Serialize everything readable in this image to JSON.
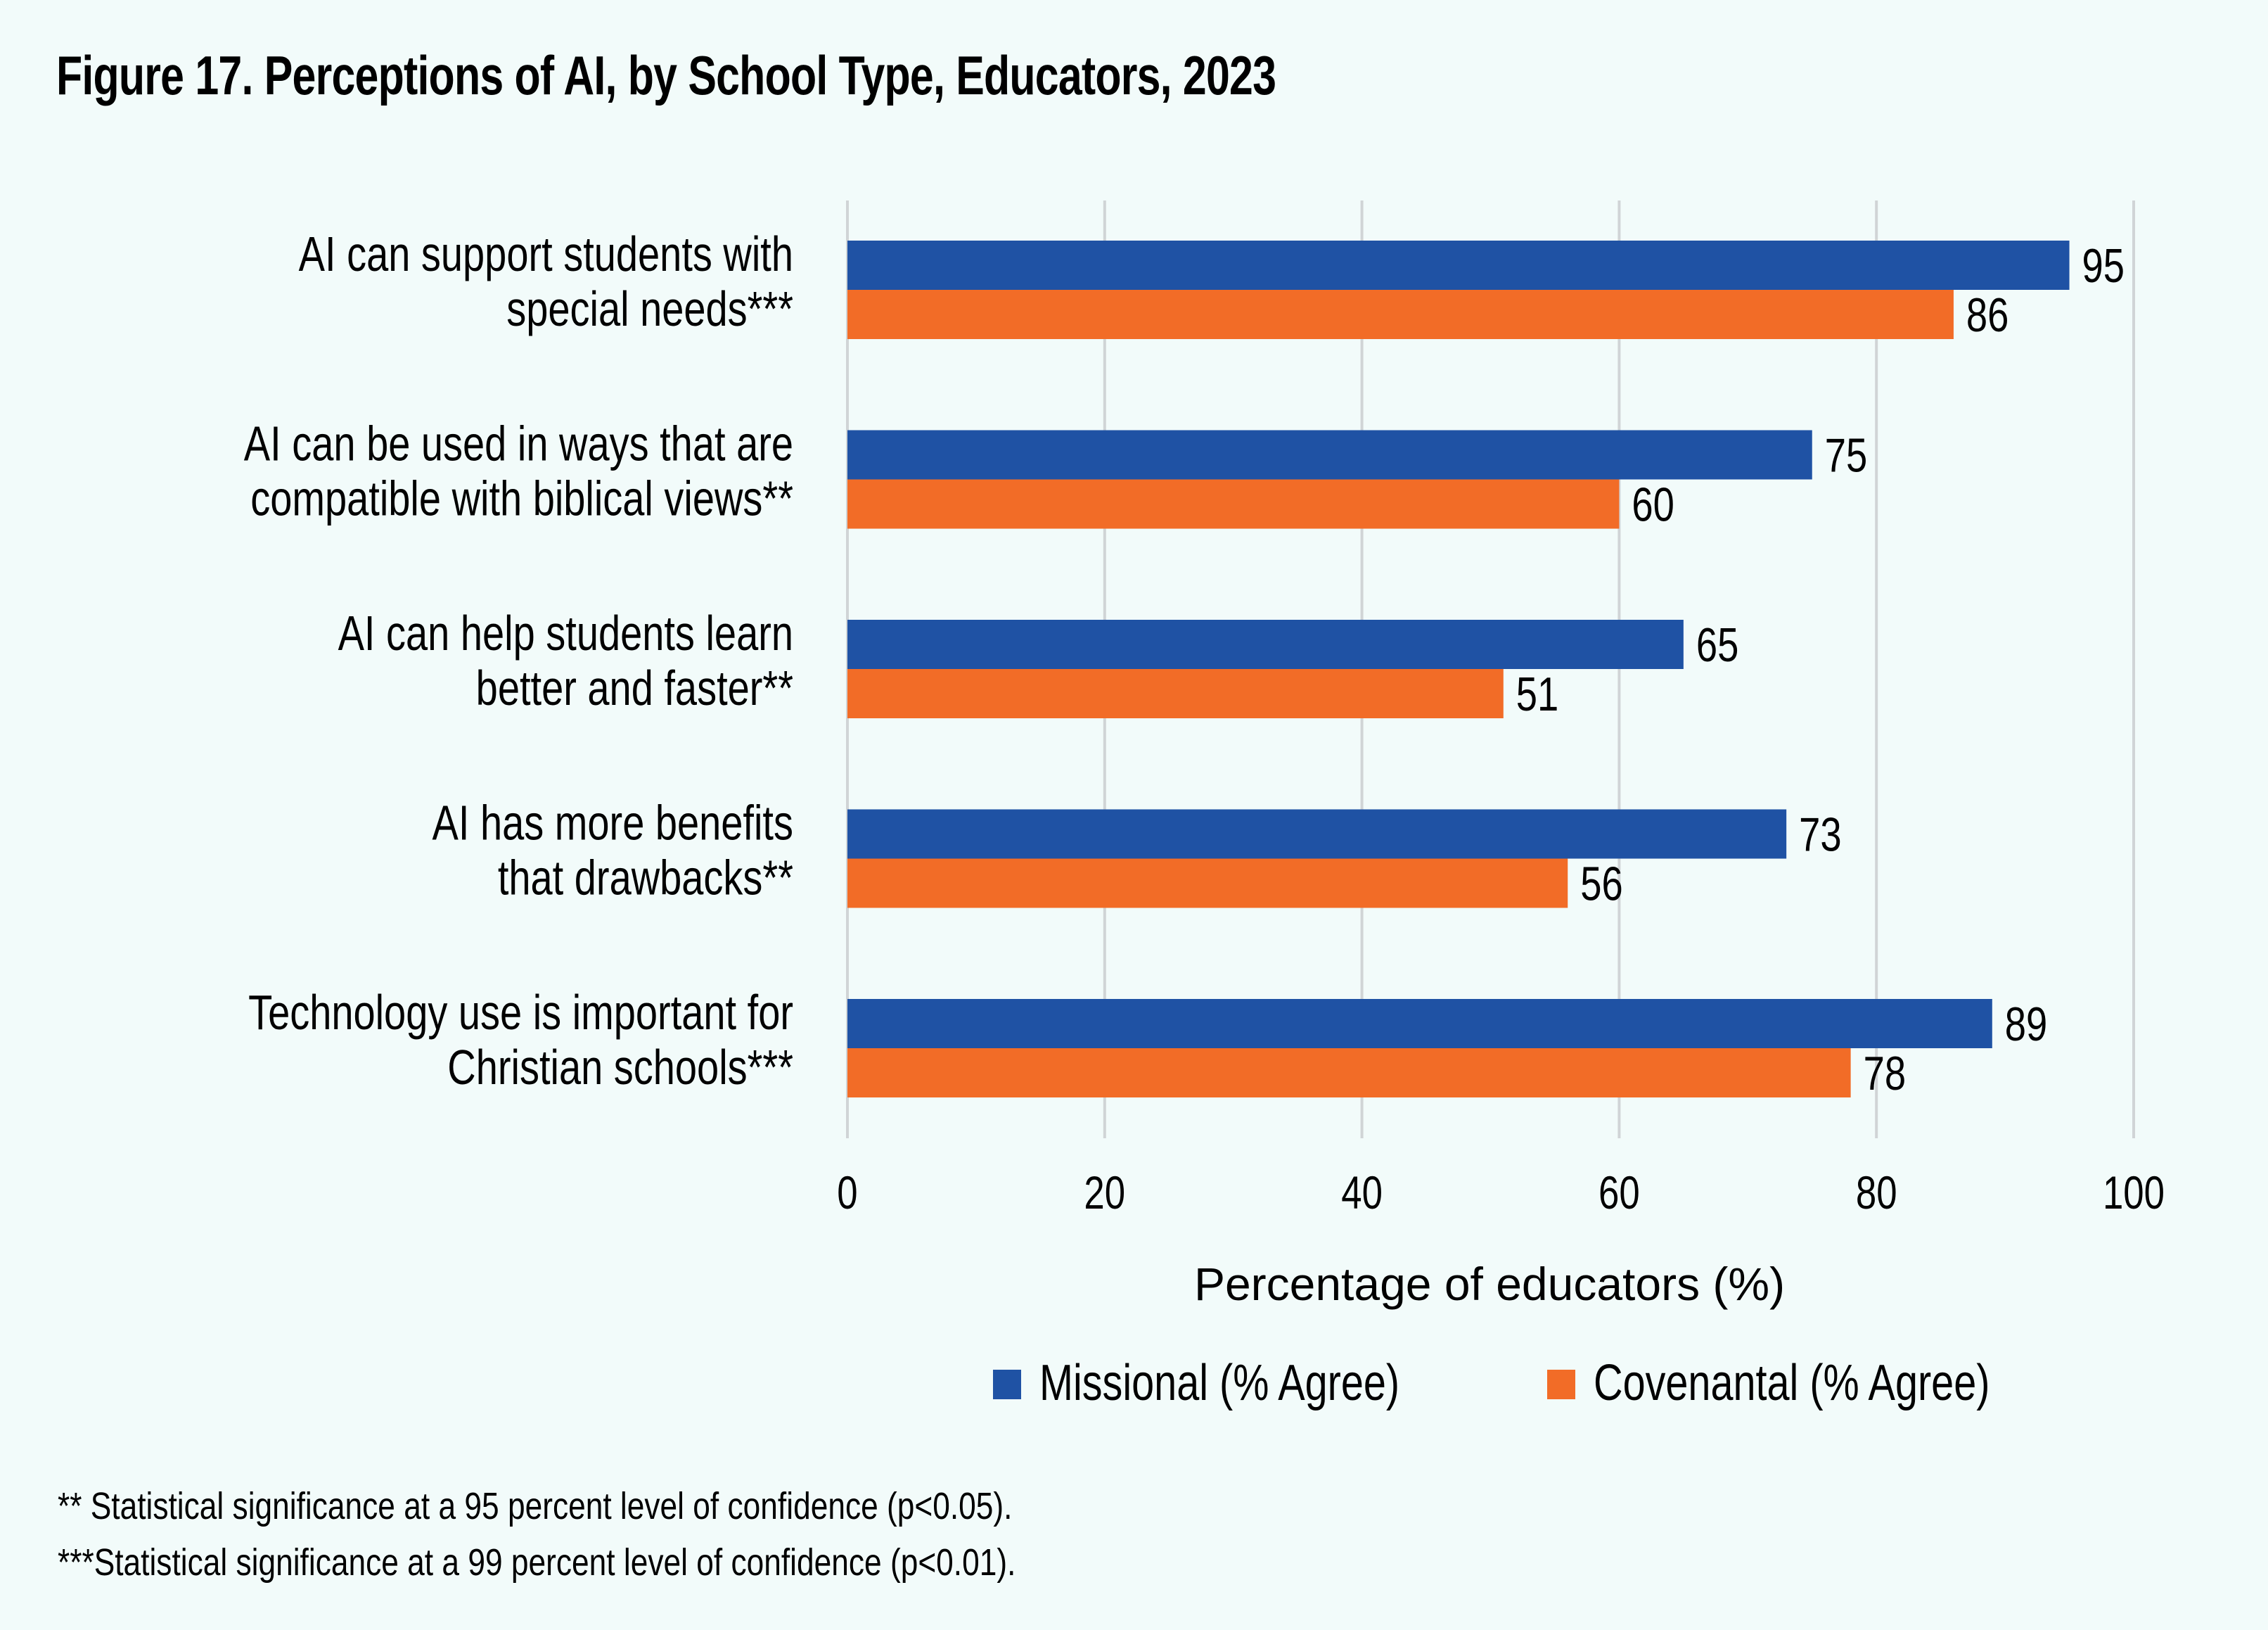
{
  "colors": {
    "background": "#f2fbfa",
    "missional": "#1f52a4",
    "covenantal": "#f26c27",
    "grid": "#d0d4d6",
    "text": "#000000"
  },
  "footnotes": [
    "** Statistical significance at a 95 percent level of confidence (p<0.05).",
    "***Statistical significance at a 99 percent level of confidence (p<0.01)."
  ],
  "chart_data": {
    "type": "bar",
    "orientation": "horizontal",
    "title": "Figure 17. Perceptions of AI, by School Type, Educators, 2023",
    "xlabel": "Percentage of educators (%)",
    "ylabel": "",
    "xlim": [
      0,
      100
    ],
    "xticks": [
      0,
      20,
      40,
      60,
      80,
      100
    ],
    "grid": true,
    "legend_position": "bottom-center",
    "categories": [
      [
        "AI can support students with",
        "special needs***"
      ],
      [
        "AI can be used in ways that are",
        "compatible with biblical views**"
      ],
      [
        "AI can help students learn",
        "better and faster**"
      ],
      [
        "AI has more benefits",
        "that drawbacks**"
      ],
      [
        "Technology use is important for",
        "Christian schools***"
      ]
    ],
    "series": [
      {
        "name": "Missional (% Agree)",
        "color": "#1f52a4",
        "values": [
          95,
          75,
          65,
          73,
          89
        ]
      },
      {
        "name": "Covenantal (% Agree)",
        "color": "#f26c27",
        "values": [
          86,
          60,
          51,
          56,
          78
        ]
      }
    ]
  }
}
